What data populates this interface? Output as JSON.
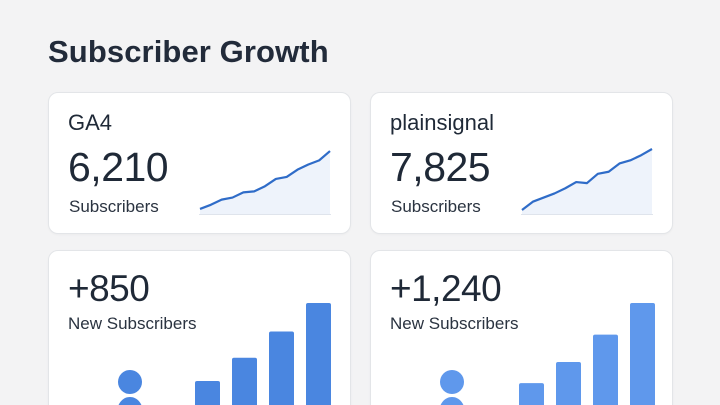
{
  "page": {
    "title": "Subscriber Growth"
  },
  "colors": {
    "line": "#2f6cc8",
    "area": "#eef3fb",
    "bar_left": "#4a86e0",
    "bar_right": "#5f98ec",
    "icon": "#4a86e0"
  },
  "cards": [
    {
      "source": "GA4",
      "value": "6,210",
      "label": "Subscribers"
    },
    {
      "source": "plainsignal",
      "value": "7,825",
      "label": "Subscribers"
    }
  ],
  "new_cards": [
    {
      "value": "+850",
      "label": "New Subscribers",
      "icon": "person-icon"
    },
    {
      "value": "+1,240",
      "label": "New Subscribers",
      "icon": "person-icon"
    }
  ],
  "chart_data": [
    {
      "type": "line",
      "series_of": "GA4",
      "x": [
        0,
        1,
        2,
        3,
        4,
        5,
        6,
        7,
        8,
        9,
        10,
        11,
        12
      ],
      "values": [
        2,
        6,
        11,
        13,
        18,
        19,
        24,
        31,
        33,
        40,
        45,
        49,
        58
      ]
    },
    {
      "type": "line",
      "series_of": "plainsignal",
      "x": [
        0,
        1,
        2,
        3,
        4,
        5,
        6,
        7,
        8,
        9,
        10,
        11,
        12
      ],
      "values": [
        1,
        9,
        13,
        17,
        22,
        28,
        27,
        36,
        38,
        46,
        49,
        54,
        60
      ]
    },
    {
      "type": "bar",
      "series_of": "+850",
      "values": [
        38,
        60,
        85,
        112
      ]
    },
    {
      "type": "bar",
      "series_of": "+1,240",
      "values": [
        36,
        56,
        82,
        112
      ]
    }
  ]
}
